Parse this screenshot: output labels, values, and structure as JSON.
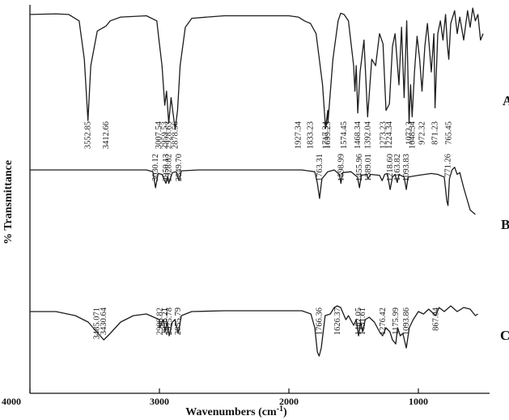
{
  "chart_data": {
    "type": "line",
    "title": "",
    "xlabel": "Wavenumbers (cm",
    "xlabel_superscript": "-1",
    "xlabel_suffix": ")",
    "ylabel": "% Transmittance",
    "xlim": [
      4000,
      450
    ],
    "x_reversed": true,
    "grid": false,
    "x_ticks": [
      {
        "value": 4000,
        "label": "4000"
      },
      {
        "value": 3000,
        "label": "3000"
      },
      {
        "value": 2000,
        "label": "2000"
      },
      {
        "value": 1000,
        "label": "1000"
      }
    ],
    "series": [
      {
        "name": "A",
        "points": [
          [
            4000,
            0.95
          ],
          [
            3800,
            0.955
          ],
          [
            3700,
            0.95
          ],
          [
            3620,
            0.9
          ],
          [
            3580,
            0.6
          ],
          [
            3552,
            0.12
          ],
          [
            3530,
            0.55
          ],
          [
            3480,
            0.82
          ],
          [
            3412,
            0.86
          ],
          [
            3380,
            0.9
          ],
          [
            3300,
            0.93
          ],
          [
            3100,
            0.94
          ],
          [
            3020,
            0.9
          ],
          [
            3007,
            0.78
          ],
          [
            2980,
            0.55
          ],
          [
            2959,
            0.24
          ],
          [
            2945,
            0.35
          ],
          [
            2928,
            0.1
          ],
          [
            2910,
            0.3
          ],
          [
            2895,
            0.18
          ],
          [
            2878,
            0.05
          ],
          [
            2860,
            0.2
          ],
          [
            2840,
            0.55
          ],
          [
            2800,
            0.85
          ],
          [
            2750,
            0.92
          ],
          [
            2500,
            0.94
          ],
          [
            2200,
            0.94
          ],
          [
            2000,
            0.94
          ],
          [
            1927,
            0.93
          ],
          [
            1880,
            0.9
          ],
          [
            1833,
            0.88
          ],
          [
            1790,
            0.8
          ],
          [
            1740,
            0.4
          ],
          [
            1717,
            0.06
          ],
          [
            1700,
            0.2
          ],
          [
            1699,
            0.1
          ],
          [
            1660,
            0.6
          ],
          [
            1620,
            0.9
          ],
          [
            1600,
            0.96
          ],
          [
            1574,
            0.95
          ],
          [
            1540,
            0.9
          ],
          [
            1500,
            0.55
          ],
          [
            1490,
            0.35
          ],
          [
            1480,
            0.55
          ],
          [
            1468,
            0.18
          ],
          [
            1450,
            0.5
          ],
          [
            1420,
            0.75
          ],
          [
            1392,
            0.15
          ],
          [
            1360,
            0.6
          ],
          [
            1330,
            0.55
          ],
          [
            1300,
            0.8
          ],
          [
            1273,
            0.72
          ],
          [
            1250,
            0.2
          ],
          [
            1224,
            0.25
          ],
          [
            1200,
            0.7
          ],
          [
            1180,
            0.8
          ],
          [
            1150,
            0.4
          ],
          [
            1130,
            0.85
          ],
          [
            1110,
            0.3
          ],
          [
            1090,
            0.9
          ],
          [
            1072,
            0.1
          ],
          [
            1060,
            0.4
          ],
          [
            1048,
            0.15
          ],
          [
            1030,
            0.5
          ],
          [
            1010,
            0.78
          ],
          [
            990,
            0.6
          ],
          [
            972,
            0.35
          ],
          [
            950,
            0.7
          ],
          [
            930,
            0.88
          ],
          [
            900,
            0.5
          ],
          [
            880,
            0.8
          ],
          [
            871,
            0.22
          ],
          [
            850,
            0.8
          ],
          [
            830,
            0.9
          ],
          [
            810,
            0.75
          ],
          [
            790,
            0.95
          ],
          [
            775,
            0.7
          ],
          [
            765,
            0.6
          ],
          [
            750,
            0.88
          ],
          [
            720,
            0.98
          ],
          [
            700,
            0.8
          ],
          [
            680,
            0.93
          ],
          [
            650,
            0.75
          ],
          [
            620,
            0.98
          ],
          [
            600,
            0.85
          ],
          [
            580,
            1.0
          ],
          [
            560,
            0.9
          ],
          [
            540,
            0.95
          ],
          [
            520,
            0.75
          ],
          [
            500,
            0.8
          ]
        ],
        "peak_labels": [
          {
            "x": 3552,
            "label": "3552.85"
          },
          {
            "x": 3412,
            "label": "3412.66"
          },
          {
            "x": 3007,
            "label": "3007.54"
          },
          {
            "x": 2959,
            "label": "2959.53"
          },
          {
            "x": 2928,
            "label": "2928.63"
          },
          {
            "x": 2878,
            "label": "2878.56"
          },
          {
            "x": 1927,
            "label": "1927.34"
          },
          {
            "x": 1833,
            "label": "1833.23"
          },
          {
            "x": 1717,
            "label": "1717.34"
          },
          {
            "x": 1699,
            "label": "1699.23"
          },
          {
            "x": 1574,
            "label": "1574.45"
          },
          {
            "x": 1468,
            "label": "1468.34"
          },
          {
            "x": 1392,
            "label": "1392.04"
          },
          {
            "x": 1273,
            "label": "1273.23"
          },
          {
            "x": 1224,
            "label": "1224.34"
          },
          {
            "x": 1072,
            "label": "1072.3"
          },
          {
            "x": 1048,
            "label": "1048.34"
          },
          {
            "x": 972,
            "label": "972.32"
          },
          {
            "x": 871,
            "label": "871.23"
          },
          {
            "x": 765,
            "label": "765.45"
          }
        ]
      },
      {
        "name": "B",
        "points": [
          [
            4000,
            0.5
          ],
          [
            3800,
            0.5
          ],
          [
            3600,
            0.5
          ],
          [
            3400,
            0.5
          ],
          [
            3100,
            0.5
          ],
          [
            3050,
            0.48
          ],
          [
            3030,
            0.3
          ],
          [
            3010,
            0.46
          ],
          [
            2980,
            0.45
          ],
          [
            2950,
            0.35
          ],
          [
            2935,
            0.42
          ],
          [
            2928,
            0.35
          ],
          [
            2900,
            0.47
          ],
          [
            2870,
            0.48
          ],
          [
            2849,
            0.38
          ],
          [
            2830,
            0.49
          ],
          [
            2700,
            0.5
          ],
          [
            2400,
            0.5
          ],
          [
            2100,
            0.5
          ],
          [
            1900,
            0.5
          ],
          [
            1800,
            0.48
          ],
          [
            1780,
            0.35
          ],
          [
            1763,
            0.18
          ],
          [
            1745,
            0.4
          ],
          [
            1700,
            0.48
          ],
          [
            1650,
            0.5
          ],
          [
            1610,
            0.45
          ],
          [
            1598,
            0.35
          ],
          [
            1585,
            0.47
          ],
          [
            1520,
            0.48
          ],
          [
            1470,
            0.42
          ],
          [
            1455,
            0.3
          ],
          [
            1440,
            0.44
          ],
          [
            1400,
            0.45
          ],
          [
            1389,
            0.4
          ],
          [
            1370,
            0.45
          ],
          [
            1300,
            0.44
          ],
          [
            1280,
            0.38
          ],
          [
            1260,
            0.45
          ],
          [
            1240,
            0.46
          ],
          [
            1218,
            0.28
          ],
          [
            1200,
            0.42
          ],
          [
            1180,
            0.45
          ],
          [
            1163,
            0.36
          ],
          [
            1150,
            0.45
          ],
          [
            1110,
            0.42
          ],
          [
            1093,
            0.28
          ],
          [
            1080,
            0.42
          ],
          [
            1000,
            0.44
          ],
          [
            900,
            0.46
          ],
          [
            850,
            0.45
          ],
          [
            800,
            0.42
          ],
          [
            780,
            0.15
          ],
          [
            771,
            0.1
          ],
          [
            760,
            0.4
          ],
          [
            740,
            0.5
          ],
          [
            720,
            0.53
          ],
          [
            700,
            0.45
          ],
          [
            680,
            0.47
          ],
          [
            650,
            0.3
          ],
          [
            620,
            0.15
          ],
          [
            600,
            0.05
          ],
          [
            560,
            0.0
          ]
        ],
        "peak_labels": [
          {
            "x": 3030,
            "label": "3030.12"
          },
          {
            "x": 2950,
            "label": "2950.13"
          },
          {
            "x": 2928,
            "label": "2928.82"
          },
          {
            "x": 2849,
            "label": "2849.70"
          },
          {
            "x": 1763,
            "label": "1763.31"
          },
          {
            "x": 1598,
            "label": "1598.99"
          },
          {
            "x": 1455,
            "label": "1455.96"
          },
          {
            "x": 1389,
            "label": "1389.01"
          },
          {
            "x": 1218,
            "label": "1218.60"
          },
          {
            "x": 1163,
            "label": "1163.82"
          },
          {
            "x": 1093,
            "label": "1093.83"
          },
          {
            "x": 771,
            "label": "771.26"
          }
        ]
      },
      {
        "name": "C",
        "points": [
          [
            4000,
            0.55
          ],
          [
            3800,
            0.55
          ],
          [
            3650,
            0.5
          ],
          [
            3550,
            0.42
          ],
          [
            3485,
            0.3
          ],
          [
            3440,
            0.22
          ],
          [
            3430,
            0.2
          ],
          [
            3380,
            0.28
          ],
          [
            3300,
            0.42
          ],
          [
            3200,
            0.5
          ],
          [
            3100,
            0.52
          ],
          [
            3000,
            0.45
          ],
          [
            2998,
            0.35
          ],
          [
            2970,
            0.45
          ],
          [
            2956,
            0.3
          ],
          [
            2940,
            0.42
          ],
          [
            2925,
            0.25
          ],
          [
            2900,
            0.42
          ],
          [
            2880,
            0.45
          ],
          [
            2855,
            0.28
          ],
          [
            2830,
            0.5
          ],
          [
            2750,
            0.55
          ],
          [
            2500,
            0.56
          ],
          [
            2200,
            0.56
          ],
          [
            2000,
            0.56
          ],
          [
            1900,
            0.56
          ],
          [
            1830,
            0.52
          ],
          [
            1800,
            0.35
          ],
          [
            1780,
            0.05
          ],
          [
            1766,
            0.0
          ],
          [
            1750,
            0.1
          ],
          [
            1720,
            0.5
          ],
          [
            1680,
            0.52
          ],
          [
            1650,
            0.6
          ],
          [
            1626,
            0.62
          ],
          [
            1600,
            0.6
          ],
          [
            1560,
            0.45
          ],
          [
            1540,
            0.5
          ],
          [
            1500,
            0.38
          ],
          [
            1480,
            0.45
          ],
          [
            1462,
            0.25
          ],
          [
            1445,
            0.42
          ],
          [
            1431,
            0.3
          ],
          [
            1410,
            0.45
          ],
          [
            1380,
            0.48
          ],
          [
            1340,
            0.42
          ],
          [
            1300,
            0.3
          ],
          [
            1276,
            0.25
          ],
          [
            1250,
            0.35
          ],
          [
            1220,
            0.3
          ],
          [
            1200,
            0.2
          ],
          [
            1175,
            0.15
          ],
          [
            1160,
            0.35
          ],
          [
            1140,
            0.25
          ],
          [
            1120,
            0.28
          ],
          [
            1093,
            0.1
          ],
          [
            1070,
            0.35
          ],
          [
            1040,
            0.45
          ],
          [
            1000,
            0.55
          ],
          [
            960,
            0.52
          ],
          [
            920,
            0.58
          ],
          [
            900,
            0.55
          ],
          [
            867,
            0.5
          ],
          [
            840,
            0.6
          ],
          [
            800,
            0.55
          ],
          [
            750,
            0.62
          ],
          [
            700,
            0.55
          ],
          [
            650,
            0.6
          ],
          [
            600,
            0.58
          ],
          [
            560,
            0.5
          ],
          [
            540,
            0.52
          ]
        ],
        "peak_labels": [
          {
            "x": 3485,
            "label": "3485.071"
          },
          {
            "x": 3430,
            "label": "3430.64"
          },
          {
            "x": 2998,
            "label": "2998.82"
          },
          {
            "x": 2956,
            "label": "2956.21"
          },
          {
            "x": 2925,
            "label": "2925.78"
          },
          {
            "x": 2855,
            "label": "2855.79"
          },
          {
            "x": 1766,
            "label": "1766.36"
          },
          {
            "x": 1626,
            "label": "1626.37"
          },
          {
            "x": 1462,
            "label": "1462.05"
          },
          {
            "x": 1431,
            "label": "1431.61"
          },
          {
            "x": 1276,
            "label": "1276.42"
          },
          {
            "x": 1175,
            "label": "1175.99"
          },
          {
            "x": 1093,
            "label": "1093.86"
          },
          {
            "x": 867,
            "label": "867.04"
          }
        ]
      }
    ]
  }
}
